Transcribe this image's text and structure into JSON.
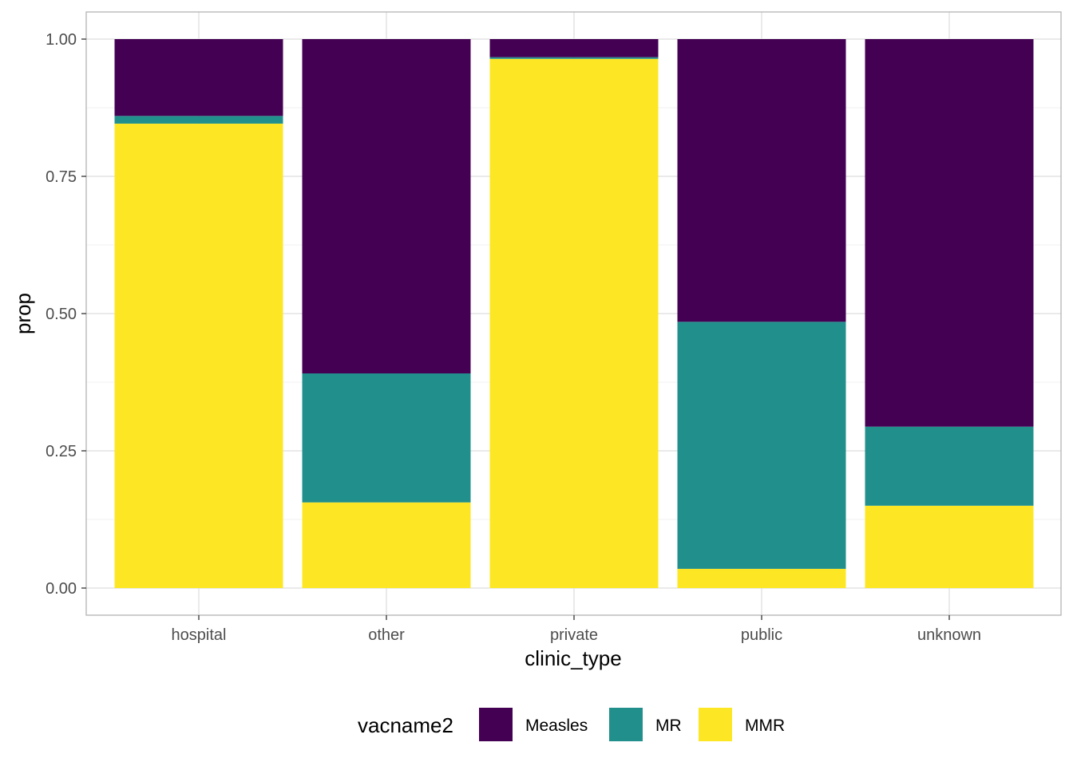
{
  "chart_data": {
    "type": "bar",
    "stacked": true,
    "xlabel": "clinic_type",
    "ylabel": "prop",
    "ylim": [
      0,
      1
    ],
    "yticks": [
      "0.00",
      "0.25",
      "0.50",
      "0.75",
      "1.00"
    ],
    "ytick_values": [
      0,
      0.25,
      0.5,
      0.75,
      1.0
    ],
    "categories": [
      "hospital",
      "other",
      "private",
      "public",
      "unknown"
    ],
    "series": [
      {
        "name": "MMR",
        "color": "#FDE725",
        "values": [
          0.846,
          0.156,
          0.964,
          0.035,
          0.15
        ]
      },
      {
        "name": "MR",
        "color": "#21908C",
        "values": [
          0.014,
          0.235,
          0.003,
          0.45,
          0.144
        ]
      },
      {
        "name": "Measles",
        "color": "#440154",
        "values": [
          0.14,
          0.609,
          0.033,
          0.515,
          0.706
        ]
      }
    ],
    "legend": {
      "title": "vacname2",
      "position": "bottom",
      "entries": [
        {
          "label": "Measles",
          "color": "#440154"
        },
        {
          "label": "MR",
          "color": "#21908C"
        },
        {
          "label": "MMR",
          "color": "#FDE725"
        }
      ]
    },
    "grid": true,
    "theme": "light"
  }
}
